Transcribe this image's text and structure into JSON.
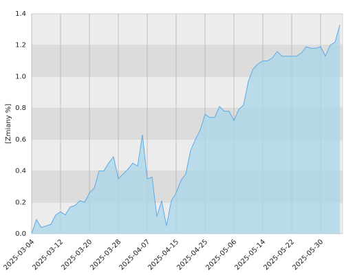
{
  "chart_data": {
    "type": "area",
    "y_label": "[Zmiany %]",
    "categories": [
      "2025-03-04",
      null,
      null,
      null,
      null,
      null,
      "2025-03-12",
      null,
      null,
      null,
      null,
      null,
      "2025-03-20",
      null,
      null,
      null,
      null,
      null,
      "2025-03-28",
      null,
      null,
      null,
      null,
      null,
      "2025-04-07",
      null,
      null,
      null,
      null,
      null,
      "2025-04-15",
      null,
      null,
      null,
      null,
      null,
      "2025-04-25",
      null,
      null,
      null,
      null,
      null,
      "2025-05-06",
      null,
      null,
      null,
      null,
      null,
      "2025-05-14",
      null,
      null,
      null,
      null,
      null,
      "2025-05-22",
      null,
      null,
      null,
      null,
      null,
      "2025-05-30",
      null,
      null,
      null,
      null
    ],
    "values": [
      0.0,
      0.09,
      0.04,
      0.05,
      0.06,
      0.12,
      0.14,
      0.12,
      0.17,
      0.18,
      0.21,
      0.2,
      0.26,
      0.29,
      0.4,
      0.4,
      0.45,
      0.49,
      0.35,
      0.38,
      0.41,
      0.45,
      0.43,
      0.63,
      0.35,
      0.36,
      0.11,
      0.21,
      0.05,
      0.21,
      0.26,
      0.34,
      0.38,
      0.53,
      0.6,
      0.66,
      0.76,
      0.74,
      0.74,
      0.81,
      0.78,
      0.78,
      0.72,
      0.79,
      0.82,
      0.97,
      1.05,
      1.08,
      1.1,
      1.1,
      1.12,
      1.16,
      1.13,
      1.13,
      1.13,
      1.13,
      1.15,
      1.19,
      1.18,
      1.18,
      1.19,
      1.13,
      1.2,
      1.22,
      1.33
    ],
    "color": "#5aaae6",
    "fill": "#a9d6ea",
    "ylim": [
      0,
      1.4
    ],
    "yticks": [
      {
        "value": 0,
        "label": "0.0"
      },
      0.2,
      0.4,
      0.6,
      0.8,
      {
        "value": 1,
        "label": "1.0"
      },
      1.2,
      1.4
    ],
    "grid": true
  }
}
